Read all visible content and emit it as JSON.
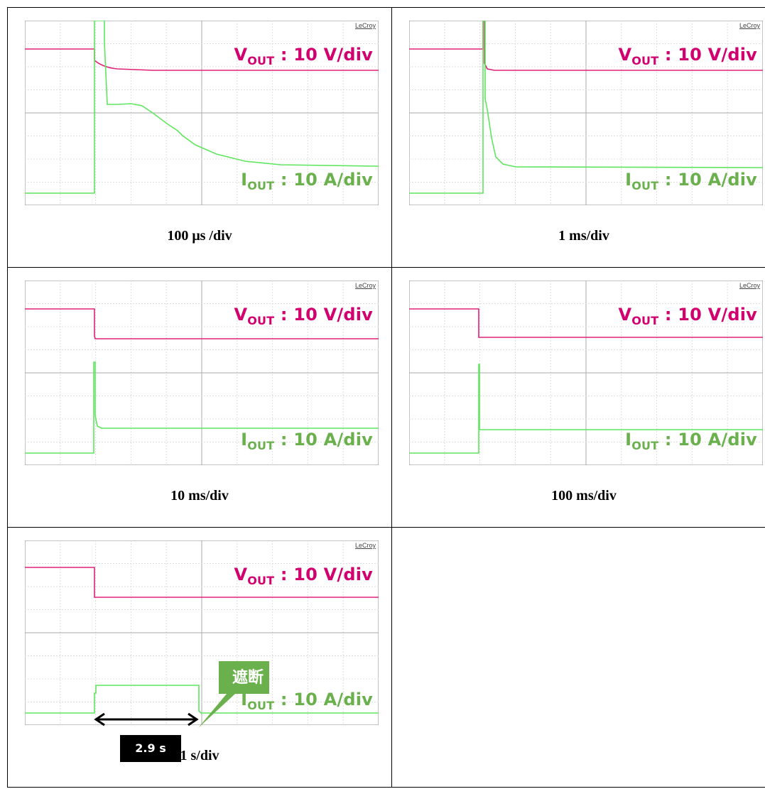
{
  "brand": "LeCroy",
  "colors": {
    "vout": "#d1006e",
    "iout": "#6ab04c",
    "vout_trace": "#e0207a",
    "iout_trace": "#5fe65f"
  },
  "vout_label": {
    "main": "V",
    "sub": "OUT",
    "scale": " : 10 V/div"
  },
  "iout_label": {
    "main": "I",
    "sub": "OUT",
    "scale": " : 10 A/div"
  },
  "panels": [
    {
      "timebase": "100 μs /div",
      "waveform": "fast"
    },
    {
      "timebase": "1 ms/div",
      "waveform": "medium"
    },
    {
      "timebase": "10 ms/div",
      "waveform": "slow"
    },
    {
      "timebase": "100 ms/div",
      "waveform": "step"
    },
    {
      "timebase": "1 s/div",
      "waveform": "cutoff"
    }
  ],
  "annotation": {
    "callout": "遮断",
    "duration": "2.9 s"
  }
}
